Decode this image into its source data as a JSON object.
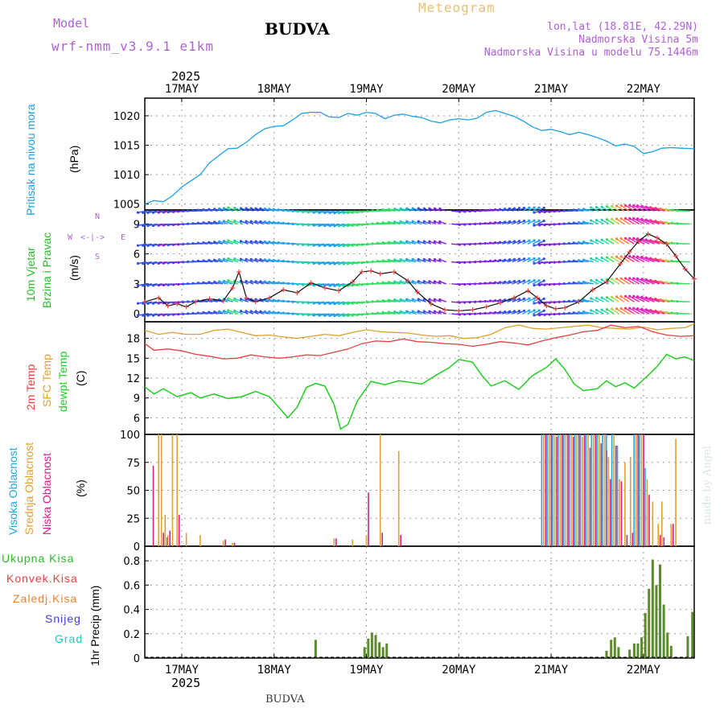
{
  "header": {
    "model_label": "Model",
    "model_value": "wrf-nmm_v3.9.1 e1km",
    "city": "BUDVA",
    "meteogram": "Meteogram",
    "lonlat": "lon,lat (18.81E, 42.29N)",
    "elev": "Nadmorska Visina 5m",
    "elev_model": "Nadmorska Visina u modelu 75.1446m",
    "footer_city": "BUDVA",
    "credit": "made by Angel",
    "year_top": "2025",
    "year_bottom": "2025"
  },
  "colors": {
    "pressure": "#1ea0e6",
    "wind_label": "#2db92d",
    "temp2m": "#e84040",
    "sfc": "#e0a030",
    "dewpt": "#22cc22",
    "high_cloud": "#20a8e0",
    "mid_cloud": "#e0a030",
    "low_cloud": "#d0208a",
    "total_precip": "#2db92d",
    "conv_precip": "#e84040",
    "frz_precip": "#f08030",
    "snow": "#4040e0",
    "hail": "#20c8c0"
  },
  "panel_labels": {
    "pressure": [
      "Pritisak na nivou mora",
      "(hPa)"
    ],
    "wind": [
      "10m Vjetar",
      "Brzina i Pravac",
      "(m/s)"
    ],
    "temp": [
      "2m Temp",
      "SFC Temp",
      "dewpt Temp",
      "(C)"
    ],
    "cloud": [
      "Visoka Oblacnost",
      "Srednja Oblacnost",
      "Niska Oblacnost",
      "(%)"
    ],
    "precip": [
      "Ukupna Kisa",
      "Konvek.Kisa",
      "Zaledj.Kisa",
      "Snijeg",
      "Grad",
      "1hr Precip (mm)"
    ]
  },
  "compass": {
    "n": "N",
    "w": "W",
    "e": "E",
    "s": "S"
  },
  "chart_data": [
    {
      "type": "line",
      "name": "pressure",
      "x_ticks": [
        "17MAY",
        "18MAY",
        "19MAY",
        "20MAY",
        "21MAY",
        "22MAY"
      ],
      "x_range_days": [
        16.6,
        22.55
      ],
      "ylim": [
        1004,
        1023
      ],
      "y_ticks": [
        1005,
        1010,
        1015,
        1020
      ],
      "points": [
        [
          16.6,
          1005
        ],
        [
          16.7,
          1005.6
        ],
        [
          16.8,
          1005.4
        ],
        [
          16.9,
          1006.4
        ],
        [
          17.0,
          1007.9
        ],
        [
          17.2,
          1010
        ],
        [
          17.3,
          1012
        ],
        [
          17.5,
          1014.4
        ],
        [
          17.6,
          1014.5
        ],
        [
          17.7,
          1015.5
        ],
        [
          17.8,
          1016.8
        ],
        [
          17.9,
          1017.8
        ],
        [
          18.0,
          1018.2
        ],
        [
          18.1,
          1018.3
        ],
        [
          18.2,
          1019.3
        ],
        [
          18.3,
          1020.4
        ],
        [
          18.4,
          1020.6
        ],
        [
          18.5,
          1020.6
        ],
        [
          18.6,
          1019.8
        ],
        [
          18.7,
          1019.7
        ],
        [
          18.8,
          1020.4
        ],
        [
          18.9,
          1020.1
        ],
        [
          19.0,
          1020.6
        ],
        [
          19.1,
          1020.4
        ],
        [
          19.2,
          1019.5
        ],
        [
          19.3,
          1020.1
        ],
        [
          19.4,
          1020.3
        ],
        [
          19.5,
          1019.9
        ],
        [
          19.6,
          1019.7
        ],
        [
          19.7,
          1019.1
        ],
        [
          19.8,
          1018.8
        ],
        [
          19.9,
          1019.3
        ],
        [
          20.0,
          1019.5
        ],
        [
          20.1,
          1019.3
        ],
        [
          20.2,
          1019.6
        ],
        [
          20.3,
          1020.6
        ],
        [
          20.4,
          1020.9
        ],
        [
          20.5,
          1020.4
        ],
        [
          20.6,
          1019.9
        ],
        [
          20.7,
          1019.1
        ],
        [
          20.8,
          1018.1
        ],
        [
          20.9,
          1017.5
        ],
        [
          21.0,
          1017.7
        ],
        [
          21.1,
          1017.3
        ],
        [
          21.2,
          1016.8
        ],
        [
          21.3,
          1017.2
        ],
        [
          21.4,
          1016.8
        ],
        [
          21.5,
          1016.3
        ],
        [
          21.6,
          1015.7
        ],
        [
          21.7,
          1014.9
        ],
        [
          21.8,
          1015.2
        ],
        [
          21.9,
          1014.8
        ],
        [
          22.0,
          1013.6
        ],
        [
          22.1,
          1013.9
        ],
        [
          22.2,
          1014.5
        ],
        [
          22.3,
          1014.6
        ],
        [
          22.4,
          1014.5
        ],
        [
          22.55,
          1014.4
        ]
      ]
    },
    {
      "type": "line",
      "name": "wind",
      "ylim": [
        -0.8,
        10.4
      ],
      "y_ticks": [
        0,
        3,
        6,
        9
      ],
      "speed": [
        [
          16.6,
          1.2
        ],
        [
          16.75,
          1.6
        ],
        [
          16.85,
          0.8
        ],
        [
          16.95,
          1.0
        ],
        [
          17.05,
          0.7
        ],
        [
          17.15,
          1.2
        ],
        [
          17.3,
          1.5
        ],
        [
          17.45,
          1.3
        ],
        [
          17.55,
          2.6
        ],
        [
          17.62,
          4.2
        ],
        [
          17.7,
          1.6
        ],
        [
          17.8,
          1.2
        ],
        [
          17.95,
          1.6
        ],
        [
          18.1,
          2.4
        ],
        [
          18.25,
          2.1
        ],
        [
          18.4,
          3.1
        ],
        [
          18.55,
          2.6
        ],
        [
          18.7,
          2.3
        ],
        [
          18.85,
          3.2
        ],
        [
          18.95,
          4.2
        ],
        [
          19.05,
          4.3
        ],
        [
          19.15,
          4.0
        ],
        [
          19.3,
          4.2
        ],
        [
          19.45,
          3.3
        ],
        [
          19.55,
          2.2
        ],
        [
          19.7,
          1.0
        ],
        [
          19.85,
          0.4
        ],
        [
          20.0,
          0.3
        ],
        [
          20.15,
          0.4
        ],
        [
          20.3,
          0.7
        ],
        [
          20.45,
          1.1
        ],
        [
          20.6,
          1.6
        ],
        [
          20.75,
          2.3
        ],
        [
          20.85,
          1.6
        ],
        [
          20.95,
          0.8
        ],
        [
          21.05,
          0.5
        ],
        [
          21.15,
          0.6
        ],
        [
          21.3,
          1.2
        ],
        [
          21.45,
          2.4
        ],
        [
          21.6,
          3.2
        ],
        [
          21.75,
          5.0
        ],
        [
          21.85,
          6.2
        ],
        [
          21.95,
          7.3
        ],
        [
          22.05,
          8.0
        ],
        [
          22.15,
          7.6
        ],
        [
          22.25,
          7.0
        ],
        [
          22.35,
          5.8
        ],
        [
          22.45,
          4.5
        ],
        [
          22.55,
          3.5
        ]
      ]
    },
    {
      "type": "line",
      "name": "temperature",
      "ylim": [
        3.5,
        20.5
      ],
      "y_ticks": [
        6,
        9,
        12,
        15,
        18
      ],
      "t2m": [
        [
          16.6,
          17.2
        ],
        [
          16.7,
          16.2
        ],
        [
          16.85,
          16.4
        ],
        [
          17.0,
          16.1
        ],
        [
          17.15,
          15.6
        ],
        [
          17.3,
          15.3
        ],
        [
          17.45,
          14.9
        ],
        [
          17.6,
          15.0
        ],
        [
          17.75,
          15.5
        ],
        [
          17.9,
          15.2
        ],
        [
          18.05,
          15.0
        ],
        [
          18.2,
          15.2
        ],
        [
          18.35,
          15.5
        ],
        [
          18.5,
          15.4
        ],
        [
          18.65,
          15.9
        ],
        [
          18.8,
          16.4
        ],
        [
          18.95,
          17.2
        ],
        [
          19.1,
          17.6
        ],
        [
          19.25,
          17.5
        ],
        [
          19.4,
          17.9
        ],
        [
          19.55,
          17.5
        ],
        [
          19.7,
          17.4
        ],
        [
          19.85,
          17.2
        ],
        [
          20.0,
          17.1
        ],
        [
          20.15,
          16.8
        ],
        [
          20.3,
          17.1
        ],
        [
          20.45,
          17.5
        ],
        [
          20.6,
          17.3
        ],
        [
          20.75,
          17.0
        ],
        [
          20.9,
          17.6
        ],
        [
          21.05,
          18.1
        ],
        [
          21.2,
          18.5
        ],
        [
          21.35,
          19.0
        ],
        [
          21.5,
          19.2
        ],
        [
          21.65,
          20.0
        ],
        [
          21.8,
          19.6
        ],
        [
          21.95,
          19.8
        ],
        [
          22.1,
          19.0
        ],
        [
          22.25,
          18.5
        ],
        [
          22.4,
          18.3
        ],
        [
          22.55,
          18.4
        ]
      ],
      "sfc": [
        [
          16.6,
          19.2
        ],
        [
          16.75,
          18.6
        ],
        [
          16.9,
          18.9
        ],
        [
          17.05,
          18.6
        ],
        [
          17.2,
          18.6
        ],
        [
          17.35,
          19.2
        ],
        [
          17.5,
          19.4
        ],
        [
          17.65,
          18.9
        ],
        [
          17.8,
          18.4
        ],
        [
          17.95,
          18.5
        ],
        [
          18.1,
          18.2
        ],
        [
          18.25,
          18.0
        ],
        [
          18.4,
          18.3
        ],
        [
          18.55,
          18.6
        ],
        [
          18.7,
          18.4
        ],
        [
          18.85,
          18.9
        ],
        [
          19.0,
          19.3
        ],
        [
          19.15,
          19.0
        ],
        [
          19.3,
          18.9
        ],
        [
          19.45,
          18.8
        ],
        [
          19.6,
          18.5
        ],
        [
          19.75,
          18.3
        ],
        [
          19.9,
          18.4
        ],
        [
          20.05,
          18.0
        ],
        [
          20.2,
          18.1
        ],
        [
          20.35,
          18.6
        ],
        [
          20.5,
          19.6
        ],
        [
          20.65,
          20.0
        ],
        [
          20.8,
          19.5
        ],
        [
          20.95,
          19.4
        ],
        [
          21.1,
          19.6
        ],
        [
          21.25,
          19.8
        ],
        [
          21.4,
          20.0
        ],
        [
          21.55,
          19.6
        ],
        [
          21.7,
          19.5
        ],
        [
          21.85,
          19.4
        ],
        [
          22.0,
          19.7
        ],
        [
          22.15,
          19.3
        ],
        [
          22.3,
          19.5
        ],
        [
          22.45,
          19.6
        ],
        [
          22.55,
          20.2
        ]
      ],
      "dewpt": [
        [
          16.6,
          10.7
        ],
        [
          16.7,
          9.6
        ],
        [
          16.8,
          10.4
        ],
        [
          16.95,
          9.2
        ],
        [
          17.1,
          9.8
        ],
        [
          17.2,
          9.0
        ],
        [
          17.35,
          9.6
        ],
        [
          17.5,
          8.9
        ],
        [
          17.65,
          9.2
        ],
        [
          17.8,
          10.0
        ],
        [
          17.95,
          9.2
        ],
        [
          18.05,
          7.6
        ],
        [
          18.15,
          6.0
        ],
        [
          18.25,
          7.6
        ],
        [
          18.35,
          10.6
        ],
        [
          18.45,
          11.2
        ],
        [
          18.55,
          10.8
        ],
        [
          18.65,
          8.0
        ],
        [
          18.72,
          4.3
        ],
        [
          18.8,
          5.0
        ],
        [
          18.9,
          8.5
        ],
        [
          19.05,
          11.5
        ],
        [
          19.2,
          11.0
        ],
        [
          19.35,
          11.6
        ],
        [
          19.5,
          11.3
        ],
        [
          19.6,
          11.1
        ],
        [
          19.75,
          12.4
        ],
        [
          19.9,
          13.6
        ],
        [
          20.0,
          14.8
        ],
        [
          20.15,
          14.4
        ],
        [
          20.25,
          12.4
        ],
        [
          20.35,
          10.8
        ],
        [
          20.5,
          11.6
        ],
        [
          20.65,
          10.3
        ],
        [
          20.8,
          12.4
        ],
        [
          20.95,
          13.6
        ],
        [
          21.05,
          14.9
        ],
        [
          21.15,
          13.3
        ],
        [
          21.25,
          11.1
        ],
        [
          21.35,
          10.1
        ],
        [
          21.5,
          10.4
        ],
        [
          21.6,
          11.6
        ],
        [
          21.7,
          10.7
        ],
        [
          21.8,
          11.3
        ],
        [
          21.9,
          10.5
        ],
        [
          22.05,
          12.4
        ],
        [
          22.15,
          13.8
        ],
        [
          22.25,
          15.6
        ],
        [
          22.35,
          14.9
        ],
        [
          22.45,
          15.2
        ],
        [
          22.55,
          14.6
        ]
      ]
    },
    {
      "type": "bar",
      "name": "cloud_cover",
      "ylim": [
        0,
        100
      ],
      "y_ticks": [
        0,
        25,
        50,
        75,
        100
      ],
      "bars": [
        [
          16.67,
          0,
          0,
          72
        ],
        [
          16.75,
          0,
          100,
          0
        ],
        [
          16.78,
          0,
          100,
          12
        ],
        [
          16.82,
          0,
          28,
          8
        ],
        [
          16.85,
          0,
          10,
          14
        ],
        [
          16.9,
          0,
          100,
          0
        ],
        [
          16.95,
          0,
          100,
          28
        ],
        [
          17.05,
          0,
          12,
          0
        ],
        [
          17.2,
          0,
          10,
          0
        ],
        [
          17.45,
          0,
          5,
          6
        ],
        [
          17.55,
          0,
          3,
          3
        ],
        [
          18.65,
          0,
          7,
          7
        ],
        [
          18.85,
          0,
          6,
          0
        ],
        [
          19.0,
          0,
          10,
          48
        ],
        [
          19.15,
          0,
          100,
          12
        ],
        [
          19.35,
          0,
          85,
          10
        ],
        [
          20.92,
          100,
          100,
          100
        ],
        [
          20.98,
          100,
          100,
          100
        ],
        [
          21.04,
          100,
          100,
          98
        ],
        [
          21.1,
          100,
          100,
          100
        ],
        [
          21.16,
          100,
          100,
          100
        ],
        [
          21.22,
          100,
          100,
          98
        ],
        [
          21.28,
          100,
          100,
          100
        ],
        [
          21.34,
          100,
          98,
          100
        ],
        [
          21.4,
          100,
          100,
          88
        ],
        [
          21.46,
          100,
          100,
          100
        ],
        [
          21.52,
          100,
          100,
          92
        ],
        [
          21.58,
          100,
          100,
          86
        ],
        [
          21.62,
          100,
          80,
          60
        ],
        [
          21.68,
          100,
          100,
          90
        ],
        [
          21.74,
          90,
          60,
          58
        ],
        [
          21.8,
          0,
          75,
          10
        ],
        [
          21.86,
          0,
          80,
          12
        ],
        [
          21.92,
          100,
          100,
          100
        ],
        [
          21.98,
          100,
          100,
          100
        ],
        [
          22.04,
          70,
          60,
          46
        ],
        [
          22.1,
          0,
          40,
          0
        ],
        [
          22.16,
          0,
          20,
          10
        ],
        [
          22.2,
          0,
          40,
          8
        ],
        [
          22.3,
          0,
          20,
          20
        ],
        [
          22.35,
          0,
          96,
          0
        ]
      ]
    },
    {
      "type": "bar",
      "name": "precipitation",
      "ylim": [
        0,
        0.92
      ],
      "y_ticks": [
        0,
        0.2,
        0.4,
        0.6,
        0.8
      ],
      "total": [
        [
          17.6,
          0.005
        ],
        [
          18.45,
          0.15
        ],
        [
          18.98,
          0.09
        ],
        [
          19.02,
          0.16
        ],
        [
          19.06,
          0.21
        ],
        [
          19.1,
          0.19
        ],
        [
          19.14,
          0.13
        ],
        [
          19.18,
          0.09
        ],
        [
          19.22,
          0.12
        ],
        [
          21.6,
          0.06
        ],
        [
          21.65,
          0.15
        ],
        [
          21.69,
          0.17
        ],
        [
          21.73,
          0.09
        ],
        [
          21.85,
          0.07
        ],
        [
          21.9,
          0.12
        ],
        [
          21.94,
          0.12
        ],
        [
          21.98,
          0.17
        ],
        [
          22.02,
          0.37
        ],
        [
          22.06,
          0.57
        ],
        [
          22.1,
          0.81
        ],
        [
          22.14,
          0.6
        ],
        [
          22.18,
          0.77
        ],
        [
          22.22,
          0.44
        ],
        [
          22.26,
          0.21
        ],
        [
          22.3,
          0.1
        ],
        [
          22.48,
          0.18
        ],
        [
          22.53,
          0.38
        ]
      ]
    }
  ]
}
